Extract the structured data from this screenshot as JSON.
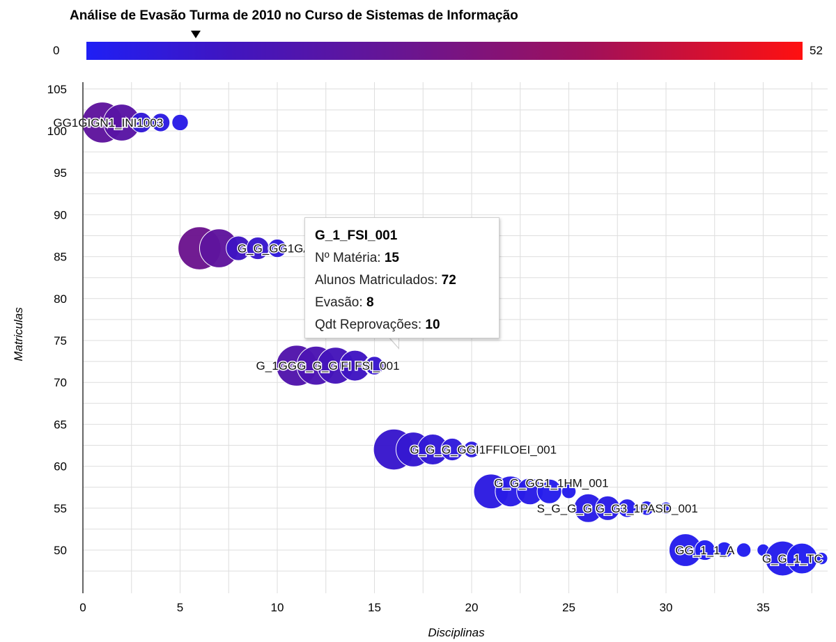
{
  "chart_data": {
    "type": "scatter",
    "title": "Análise de Evasão Turma de 2010 no Curso de Sistemas de Informação",
    "xlabel": "Disciplinas",
    "ylabel": "Matriculas",
    "xlim": [
      0,
      38.5
    ],
    "ylim": [
      45,
      105
    ],
    "xticks": [
      0,
      5,
      10,
      15,
      20,
      25,
      30,
      35
    ],
    "yticks": [
      50,
      55,
      60,
      65,
      70,
      75,
      80,
      85,
      90,
      95,
      100,
      105
    ],
    "grid": true,
    "colorbar": {
      "min": 0,
      "max": 52,
      "marker_value": 6,
      "colors": [
        "#1f1ff5",
        "#6a1590",
        "#ff1010"
      ]
    },
    "points": [
      {
        "x": 1,
        "y": 101,
        "r": 1.0,
        "c": 20
      },
      {
        "x": 2,
        "y": 101,
        "r": 0.9,
        "c": 18
      },
      {
        "x": 3,
        "y": 101,
        "r": 0.5,
        "c": 6
      },
      {
        "x": 4,
        "y": 101,
        "r": 0.45,
        "c": 4
      },
      {
        "x": 5,
        "y": 101,
        "r": 0.4,
        "c": 3
      },
      {
        "x": 6,
        "y": 86,
        "r": 1.05,
        "c": 24
      },
      {
        "x": 7,
        "y": 86,
        "r": 0.95,
        "c": 20
      },
      {
        "x": 8,
        "y": 86,
        "r": 0.6,
        "c": 10
      },
      {
        "x": 9,
        "y": 86,
        "r": 0.55,
        "c": 8
      },
      {
        "x": 10,
        "y": 86,
        "r": 0.45,
        "c": 5
      },
      {
        "x": 11,
        "y": 72,
        "r": 1.0,
        "c": 16
      },
      {
        "x": 12,
        "y": 72,
        "r": 0.95,
        "c": 14
      },
      {
        "x": 13,
        "y": 72,
        "r": 0.9,
        "c": 12
      },
      {
        "x": 14,
        "y": 72,
        "r": 0.75,
        "c": 10
      },
      {
        "x": 15,
        "y": 72,
        "r": 0.5,
        "c": 8
      },
      {
        "x": 16,
        "y": 62,
        "r": 1.0,
        "c": 8
      },
      {
        "x": 17,
        "y": 62,
        "r": 0.85,
        "c": 7
      },
      {
        "x": 18,
        "y": 62,
        "r": 0.75,
        "c": 6
      },
      {
        "x": 19,
        "y": 62,
        "r": 0.55,
        "c": 5
      },
      {
        "x": 20,
        "y": 62,
        "r": 0.4,
        "c": 4
      },
      {
        "x": 21,
        "y": 57,
        "r": 0.85,
        "c": 4
      },
      {
        "x": 22,
        "y": 57,
        "r": 0.75,
        "c": 3
      },
      {
        "x": 23,
        "y": 57,
        "r": 0.65,
        "c": 3
      },
      {
        "x": 24,
        "y": 57,
        "r": 0.6,
        "c": 2
      },
      {
        "x": 25,
        "y": 57,
        "r": 0.35,
        "c": 2
      },
      {
        "x": 26,
        "y": 55,
        "r": 0.7,
        "c": 3
      },
      {
        "x": 27,
        "y": 55,
        "r": 0.6,
        "c": 3
      },
      {
        "x": 28,
        "y": 55,
        "r": 0.45,
        "c": 2
      },
      {
        "x": 29,
        "y": 55,
        "r": 0.35,
        "c": 2
      },
      {
        "x": 30,
        "y": 55,
        "r": 0.3,
        "c": 1
      },
      {
        "x": 31,
        "y": 50,
        "r": 0.8,
        "c": 2
      },
      {
        "x": 32,
        "y": 50,
        "r": 0.5,
        "c": 1
      },
      {
        "x": 33,
        "y": 50,
        "r": 0.4,
        "c": 1
      },
      {
        "x": 34,
        "y": 50,
        "r": 0.35,
        "c": 1
      },
      {
        "x": 35,
        "y": 50,
        "r": 0.3,
        "c": 1
      },
      {
        "x": 36,
        "y": 49,
        "r": 0.85,
        "c": 2
      },
      {
        "x": 37,
        "y": 49,
        "r": 0.75,
        "c": 1
      },
      {
        "x": 38,
        "y": 49,
        "r": 0.3,
        "c": 1
      }
    ],
    "labels": [
      {
        "text": "GG1GIGN1_INI1003",
        "x": 1.3,
        "y": 101
      },
      {
        "text": "G_G_GG1GA1_AG(0",
        "x": 10.9,
        "y": 86
      },
      {
        "text": "G_1GGG_G_G FI FSI_001",
        "x": 12.6,
        "y": 72
      },
      {
        "text": "G_G_G_GGI1FFILOEI_001",
        "x": 20.6,
        "y": 62
      },
      {
        "text": "G_G_GG1_1HM_001",
        "x": 24.1,
        "y": 58
      },
      {
        "text": "S_G_G_G G_G3_1PASD_001",
        "x": 27.5,
        "y": 55
      },
      {
        "text": "GG_1_1_A",
        "x": 32.0,
        "y": 50
      },
      {
        "text": "G_G_1_TC",
        "x": 36.5,
        "y": 49
      }
    ],
    "tooltip": {
      "name": "G_1_FSI_001",
      "materia_label": "Nº Matéria:",
      "materia_value": "15",
      "alunos_label": "Alunos Matriculados:",
      "alunos_value": "72",
      "evasao_label": "Evasão:",
      "evasao_value": "8",
      "reprov_label": "Qdt Reprovações:",
      "reprov_value": "10",
      "highlight_x": 15,
      "highlight_y": 72
    }
  }
}
